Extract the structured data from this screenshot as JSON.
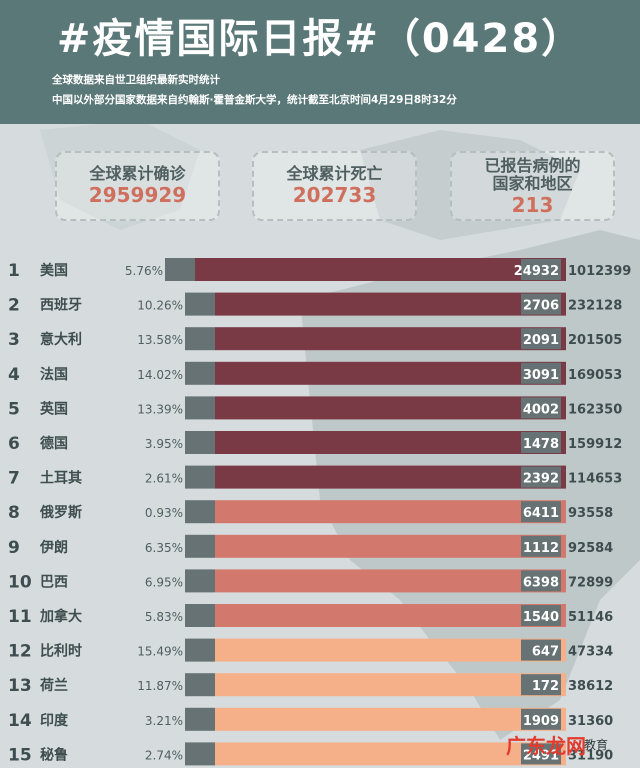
{
  "header": {
    "title": "#疫情国际日报#（0428）",
    "subtitle_line1": "全球数据来自世卫组织最新实时统计",
    "subtitle_line2": "中国以外部分国家数据来自约翰斯·霍普金斯大学，统计截至北京时间4月29日8时32分"
  },
  "stats": [
    {
      "label": "全球累计确诊",
      "value": "2959929"
    },
    {
      "label": "全球累计死亡",
      "value": "202733"
    },
    {
      "label_line1": "已报告病例的",
      "label_line2": "国家和地区",
      "value": "213"
    }
  ],
  "colors": {
    "header_bg": "#5b7878",
    "tier1": "#7a3a45",
    "tier2": "#d2786c",
    "tier3": "#f5b08a",
    "death_bar": "#667273",
    "accent_red": "#cf6f5e"
  },
  "chart_data": {
    "type": "bar",
    "orientation": "horizontal",
    "rows": [
      {
        "rank": "1",
        "country": "美国",
        "rate": "5.76%",
        "deaths": 24932,
        "cases": 1012399,
        "tier": 1
      },
      {
        "rank": "2",
        "country": "西班牙",
        "rate": "10.26%",
        "deaths": 2706,
        "cases": 232128,
        "tier": 1
      },
      {
        "rank": "3",
        "country": "意大利",
        "rate": "13.58%",
        "deaths": 2091,
        "cases": 201505,
        "tier": 1
      },
      {
        "rank": "4",
        "country": "法国",
        "rate": "14.02%",
        "deaths": 3091,
        "cases": 169053,
        "tier": 1
      },
      {
        "rank": "5",
        "country": "英国",
        "rate": "13.39%",
        "deaths": 4002,
        "cases": 162350,
        "tier": 1
      },
      {
        "rank": "6",
        "country": "德国",
        "rate": "3.95%",
        "deaths": 1478,
        "cases": 159912,
        "tier": 1
      },
      {
        "rank": "7",
        "country": "土耳其",
        "rate": "2.61%",
        "deaths": 2392,
        "cases": 114653,
        "tier": 1
      },
      {
        "rank": "8",
        "country": "俄罗斯",
        "rate": "0.93%",
        "deaths": 6411,
        "cases": 93558,
        "tier": 2
      },
      {
        "rank": "9",
        "country": "伊朗",
        "rate": "6.35%",
        "deaths": 1112,
        "cases": 92584,
        "tier": 2
      },
      {
        "rank": "10",
        "country": "巴西",
        "rate": "6.95%",
        "deaths": 6398,
        "cases": 72899,
        "tier": 2
      },
      {
        "rank": "11",
        "country": "加拿大",
        "rate": "5.83%",
        "deaths": 1540,
        "cases": 51146,
        "tier": 2
      },
      {
        "rank": "12",
        "country": "比利时",
        "rate": "15.49%",
        "deaths": 647,
        "cases": 47334,
        "tier": 3
      },
      {
        "rank": "13",
        "country": "荷兰",
        "rate": "11.87%",
        "deaths": 172,
        "cases": 38612,
        "tier": 3
      },
      {
        "rank": "14",
        "country": "印度",
        "rate": "3.21%",
        "deaths": 1909,
        "cases": 31360,
        "tier": 3
      },
      {
        "rank": "15",
        "country": "秘鲁",
        "rate": "2.74%",
        "deaths": 2491,
        "cases": 31190,
        "tier": 3
      }
    ]
  },
  "watermark": {
    "text": "广东龙网",
    "suffix": "教育"
  }
}
